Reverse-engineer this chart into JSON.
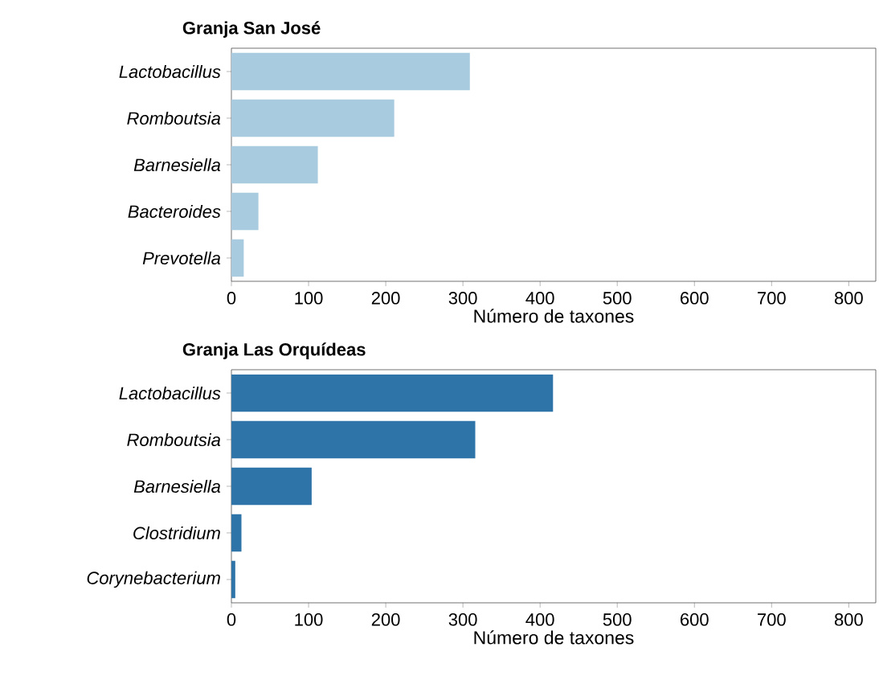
{
  "chart_data": [
    {
      "type": "bar",
      "orientation": "horizontal",
      "title": "Granja San José",
      "xlabel": "Número de taxones",
      "categories": [
        "Lactobacillus",
        "Romboutsia",
        "Barnesiella",
        "Bacteroides",
        "Prevotella"
      ],
      "values": [
        309,
        211,
        112,
        35,
        16
      ],
      "color": "#a9cbe0",
      "xlim": [
        0,
        835
      ],
      "xticks": [
        0,
        100,
        200,
        300,
        400,
        500,
        600,
        700,
        800
      ]
    },
    {
      "type": "bar",
      "orientation": "horizontal",
      "title": "Granja Las Orquídeas",
      "xlabel": "Número de taxones",
      "categories": [
        "Lactobacillus",
        "Romboutsia",
        "Barnesiella",
        "Clostridium",
        "Corynebacterium"
      ],
      "values": [
        417,
        316,
        104,
        13,
        5
      ],
      "color": "#2e74a8",
      "xlim": [
        0,
        835
      ],
      "xticks": [
        0,
        100,
        200,
        300,
        400,
        500,
        600,
        700,
        800
      ]
    }
  ]
}
